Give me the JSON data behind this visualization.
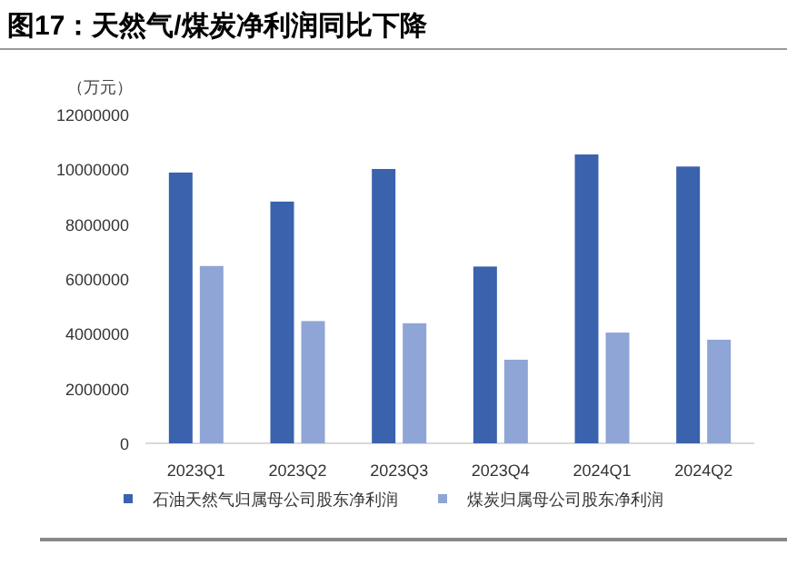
{
  "chart_data": {
    "type": "bar",
    "title": "图17：天然气/煤炭净利润同比下降",
    "ylabel": "（万元）",
    "categories": [
      "2023Q1",
      "2023Q2",
      "2023Q3",
      "2023Q4",
      "2024Q1",
      "2024Q2"
    ],
    "series": [
      {
        "name": "石油天然气归属母公司股东净利润",
        "color": "#3a62ad",
        "values": [
          9880000,
          8820000,
          10010000,
          6450000,
          10540000,
          10100000
        ]
      },
      {
        "name": "煤炭归属母公司股东净利润",
        "color": "#8fa5d6",
        "values": [
          6470000,
          4460000,
          4380000,
          3050000,
          4040000,
          3780000
        ]
      }
    ],
    "ylim": [
      0,
      12000000
    ],
    "yticks": [
      0,
      2000000,
      4000000,
      6000000,
      8000000,
      10000000,
      12000000
    ],
    "grid": false,
    "legend": "bottom"
  }
}
